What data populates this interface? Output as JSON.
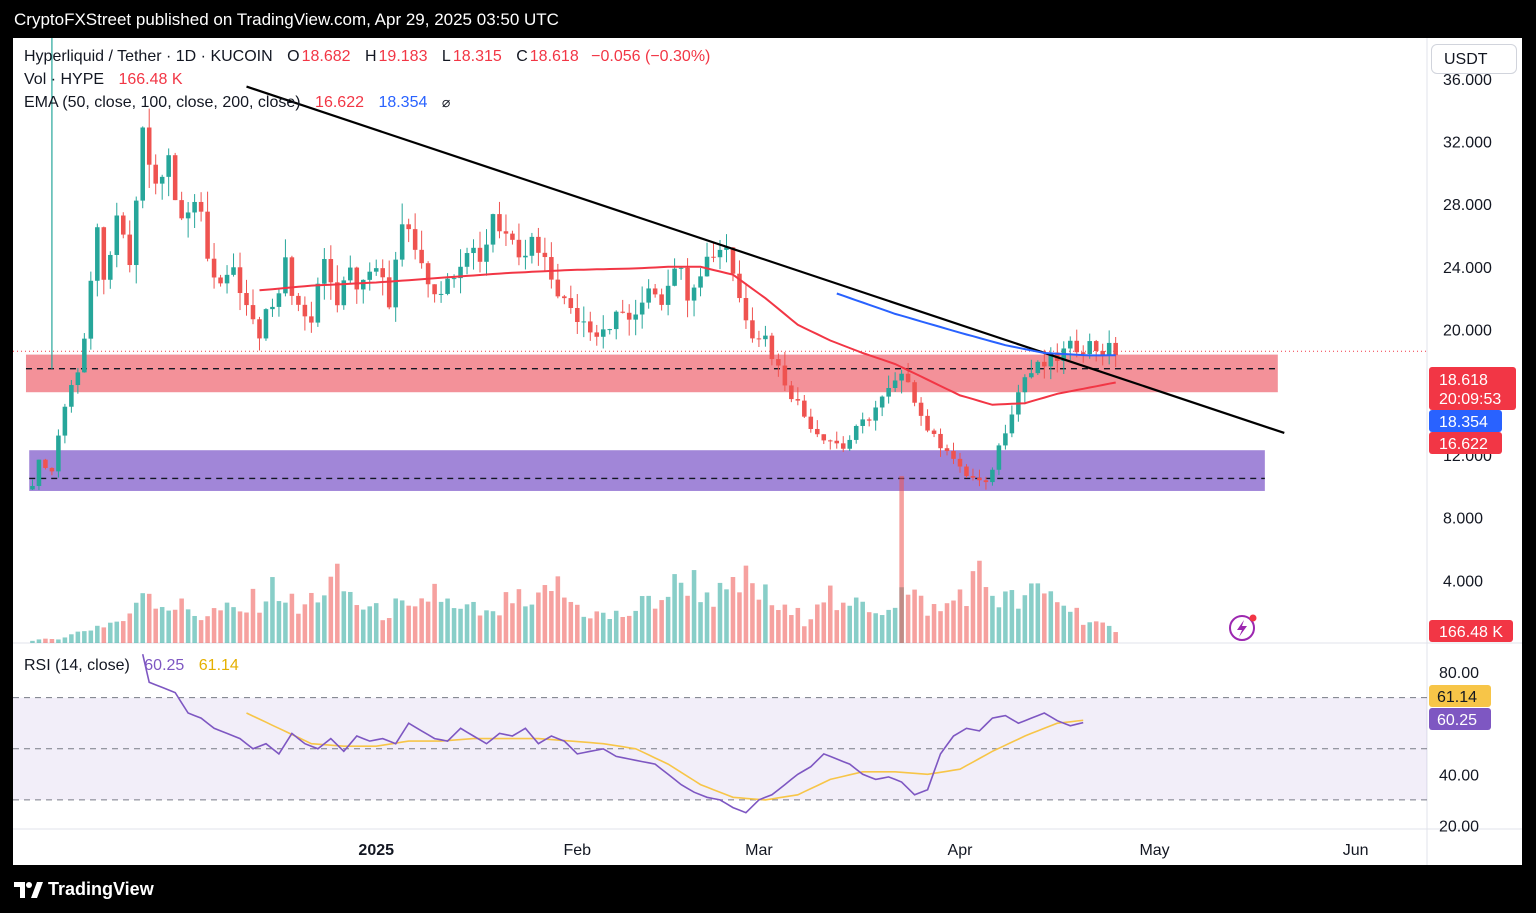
{
  "header": {
    "published": "CryptoFXStreet published on TradingView.com, Apr 29, 2025 03:50 UTC"
  },
  "legend": {
    "symbol": "Hyperliquid / Tether · 1D · KUCOIN",
    "o_label": "O",
    "o_value": "18.682",
    "h_label": "H",
    "h_value": "19.183",
    "l_label": "L",
    "l_value": "18.315",
    "c_label": "C",
    "c_value": "18.618",
    "change": "−0.056 (−0.30%)",
    "vol_label": "Vol · HYPE",
    "vol_value": "166.48 K",
    "ema_label": "EMA (50, close, 100, close, 200, close)",
    "ema50_value": "16.622",
    "ema100_value": "18.354",
    "rsi_label": "RSI (14, close)",
    "rsi_value": "60.25",
    "rsi_ma_value": "61.14"
  },
  "currency_button": "USDT",
  "price_tags": {
    "last": "18.618",
    "countdown": "20:09:53",
    "ema100": "18.354",
    "ema50": "16.622",
    "volume": "166.48 K",
    "rsi_ma": "61.14",
    "rsi": "60.25"
  },
  "footer": {
    "brand": "TradingView"
  },
  "colors": {
    "up": "#26a69a",
    "down": "#ef5350",
    "ema50": "#f23645",
    "ema100": "#2962ff",
    "rsi": "#7e57c2",
    "rsi_ma": "#f7c548",
    "resistance_zone": "#f28b93",
    "support_zone": "#9c7fd6"
  },
  "chart_data": {
    "type": "candlestick",
    "price_axis": {
      "ticks": [
        "36.000",
        "32.000",
        "28.000",
        "24.000",
        "20.000",
        "12.000",
        "8.000",
        "4.000"
      ],
      "range": [
        0,
        38.6
      ]
    },
    "rsi_axis": {
      "ticks": [
        "80.00",
        "40.00",
        "20.00"
      ],
      "range": [
        19,
        91
      ],
      "bands": [
        30,
        50,
        70
      ]
    },
    "time_axis": [
      "2025",
      "Feb",
      "Mar",
      "Apr",
      "May",
      "Jun"
    ],
    "time_ticks_day": [
      15,
      46,
      74,
      105,
      135,
      166
    ],
    "day_range": [
      -41,
      177
    ],
    "last_price": 18.618,
    "horizontal_levels": {
      "resistance_zone": [
        16.0,
        18.4
      ],
      "resistance_line": 17.5,
      "support_zone": [
        9.7,
        12.3
      ],
      "support_line": 10.5
    },
    "trendline": [
      {
        "day": -5,
        "price": 35.5
      },
      {
        "day": 155,
        "price": 13.4
      }
    ],
    "price_anchors": [
      [
        -38,
        10.0
      ],
      [
        -37,
        12.0
      ],
      [
        -35,
        11.0
      ],
      [
        -33,
        15.0
      ],
      [
        -31,
        17.5
      ],
      [
        -30,
        20.0
      ],
      [
        -28,
        26.0
      ],
      [
        -27,
        22.5
      ],
      [
        -25,
        27.0
      ],
      [
        -23,
        24.0
      ],
      [
        -21,
        33.0
      ],
      [
        -19,
        29.0
      ],
      [
        -17,
        31.0
      ],
      [
        -15,
        27.0
      ],
      [
        -13,
        29.0
      ],
      [
        -11,
        25.0
      ],
      [
        -9,
        23.0
      ],
      [
        -7,
        23.5
      ],
      [
        -5,
        21.5
      ],
      [
        -3,
        19.5
      ],
      [
        -1,
        22.0
      ],
      [
        1,
        24.0
      ],
      [
        3,
        21.5
      ],
      [
        5,
        20.5
      ],
      [
        7,
        25.0
      ],
      [
        9,
        21.5
      ],
      [
        11,
        23.5
      ],
      [
        13,
        22.5
      ],
      [
        15,
        24.0
      ],
      [
        17,
        21.5
      ],
      [
        19,
        27.0
      ],
      [
        21,
        25.0
      ],
      [
        23,
        23.0
      ],
      [
        25,
        22.5
      ],
      [
        27,
        24.0
      ],
      [
        29,
        25.0
      ],
      [
        31,
        24.0
      ],
      [
        33,
        27.5
      ],
      [
        35,
        26.0
      ],
      [
        37,
        24.0
      ],
      [
        39,
        25.5
      ],
      [
        41,
        24.0
      ],
      [
        43,
        22.5
      ],
      [
        45,
        21.0
      ],
      [
        47,
        20.5
      ],
      [
        49,
        20.0
      ],
      [
        51,
        20.5
      ],
      [
        53,
        21.0
      ],
      [
        55,
        20.5
      ],
      [
        57,
        23.0
      ],
      [
        59,
        22.0
      ],
      [
        61,
        24.5
      ],
      [
        63,
        22.5
      ],
      [
        65,
        24.0
      ],
      [
        67,
        25.0
      ],
      [
        69,
        25.5
      ],
      [
        71,
        22.0
      ],
      [
        73,
        20.0
      ],
      [
        75,
        19.5
      ],
      [
        77,
        17.5
      ],
      [
        79,
        16.0
      ],
      [
        81,
        14.5
      ],
      [
        83,
        13.5
      ],
      [
        85,
        13.0
      ],
      [
        87,
        12.5
      ],
      [
        89,
        13.5
      ],
      [
        91,
        14.5
      ],
      [
        93,
        15.5
      ],
      [
        95,
        16.5
      ],
      [
        97,
        17.0
      ],
      [
        99,
        14.5
      ],
      [
        101,
        13.0
      ],
      [
        103,
        12.5
      ],
      [
        105,
        11.0
      ],
      [
        107,
        10.5
      ],
      [
        109,
        10.0
      ],
      [
        111,
        12.5
      ],
      [
        113,
        15.0
      ],
      [
        115,
        17.0
      ],
      [
        117,
        17.5
      ],
      [
        119,
        18.0
      ],
      [
        121,
        18.5
      ],
      [
        123,
        19.0
      ],
      [
        125,
        19.0
      ],
      [
        127,
        18.7
      ],
      [
        129,
        18.618
      ]
    ],
    "ema50_anchors": [
      [
        -3,
        22.5
      ],
      [
        5,
        22.8
      ],
      [
        15,
        23.0
      ],
      [
        25,
        23.3
      ],
      [
        35,
        23.6
      ],
      [
        45,
        23.8
      ],
      [
        55,
        23.9
      ],
      [
        60,
        24.0
      ],
      [
        65,
        24.0
      ],
      [
        70,
        23.5
      ],
      [
        75,
        22.0
      ],
      [
        80,
        20.3
      ],
      [
        85,
        19.3
      ],
      [
        90,
        18.5
      ],
      [
        95,
        17.8
      ],
      [
        100,
        16.8
      ],
      [
        105,
        15.8
      ],
      [
        110,
        15.2
      ],
      [
        115,
        15.3
      ],
      [
        120,
        15.9
      ],
      [
        125,
        16.3
      ],
      [
        129,
        16.622
      ]
    ],
    "ema100_anchors": [
      [
        86,
        22.3
      ],
      [
        95,
        21.0
      ],
      [
        105,
        19.8
      ],
      [
        112,
        19.0
      ],
      [
        118,
        18.5
      ],
      [
        125,
        18.35
      ],
      [
        129,
        18.354
      ]
    ],
    "rsi_anchors": [
      [
        -21,
        87
      ],
      [
        -20,
        76
      ],
      [
        -18,
        74
      ],
      [
        -16,
        72
      ],
      [
        -14,
        64
      ],
      [
        -12,
        62
      ],
      [
        -10,
        58
      ],
      [
        -8,
        56
      ],
      [
        -6,
        54
      ],
      [
        -4,
        50
      ],
      [
        -2,
        52
      ],
      [
        0,
        48
      ],
      [
        2,
        56
      ],
      [
        4,
        52
      ],
      [
        6,
        50
      ],
      [
        8,
        54
      ],
      [
        10,
        49
      ],
      [
        12,
        55
      ],
      [
        14,
        53
      ],
      [
        16,
        54
      ],
      [
        18,
        52
      ],
      [
        20,
        60
      ],
      [
        22,
        57
      ],
      [
        24,
        54
      ],
      [
        26,
        53
      ],
      [
        28,
        58
      ],
      [
        30,
        55
      ],
      [
        32,
        52
      ],
      [
        34,
        56
      ],
      [
        36,
        55
      ],
      [
        38,
        58
      ],
      [
        40,
        52
      ],
      [
        42,
        55
      ],
      [
        44,
        53
      ],
      [
        46,
        48
      ],
      [
        48,
        49
      ],
      [
        50,
        50
      ],
      [
        52,
        47
      ],
      [
        54,
        46
      ],
      [
        56,
        45
      ],
      [
        58,
        44
      ],
      [
        60,
        40
      ],
      [
        62,
        36
      ],
      [
        64,
        33
      ],
      [
        66,
        31
      ],
      [
        68,
        30
      ],
      [
        70,
        27
      ],
      [
        72,
        25
      ],
      [
        74,
        30
      ],
      [
        76,
        32
      ],
      [
        78,
        36
      ],
      [
        80,
        40
      ],
      [
        82,
        43
      ],
      [
        84,
        48
      ],
      [
        86,
        46
      ],
      [
        88,
        44
      ],
      [
        90,
        40
      ],
      [
        92,
        38
      ],
      [
        94,
        39
      ],
      [
        96,
        37
      ],
      [
        98,
        32
      ],
      [
        100,
        34
      ],
      [
        102,
        48
      ],
      [
        104,
        55
      ],
      [
        106,
        58
      ],
      [
        108,
        57
      ],
      [
        110,
        62
      ],
      [
        112,
        63
      ],
      [
        114,
        60
      ],
      [
        116,
        62
      ],
      [
        118,
        64
      ],
      [
        120,
        61
      ],
      [
        122,
        59
      ],
      [
        124,
        60.25
      ]
    ],
    "rsi_ma_anchors": [
      [
        -5,
        64
      ],
      [
        0,
        58
      ],
      [
        5,
        52
      ],
      [
        10,
        51
      ],
      [
        15,
        51
      ],
      [
        20,
        53
      ],
      [
        25,
        53
      ],
      [
        30,
        54
      ],
      [
        35,
        54
      ],
      [
        40,
        54
      ],
      [
        45,
        53
      ],
      [
        50,
        52
      ],
      [
        55,
        50
      ],
      [
        60,
        44
      ],
      [
        65,
        36
      ],
      [
        70,
        31
      ],
      [
        75,
        30
      ],
      [
        80,
        32
      ],
      [
        85,
        38
      ],
      [
        90,
        41
      ],
      [
        95,
        41
      ],
      [
        100,
        40
      ],
      [
        105,
        42
      ],
      [
        110,
        49
      ],
      [
        115,
        55
      ],
      [
        120,
        60
      ],
      [
        124,
        61.14
      ]
    ],
    "volume_anchors": [
      [
        -38,
        0.2
      ],
      [
        -35,
        0.4
      ],
      [
        -32,
        0.8
      ],
      [
        -29,
        1.5
      ],
      [
        -26,
        2.0
      ],
      [
        -23,
        2.4
      ],
      [
        -21,
        6.0
      ],
      [
        -18,
        4.0
      ],
      [
        -15,
        3.5
      ],
      [
        -12,
        2.8
      ],
      [
        -9,
        3.2
      ],
      [
        -6,
        3.0
      ],
      [
        -3,
        4.5
      ],
      [
        0,
        5.5
      ],
      [
        3,
        3.0
      ],
      [
        6,
        5.0
      ],
      [
        9,
        6.0
      ],
      [
        12,
        4.0
      ],
      [
        15,
        3.0
      ],
      [
        18,
        3.5
      ],
      [
        21,
        2.8
      ],
      [
        24,
        5.5
      ],
      [
        27,
        3.0
      ],
      [
        30,
        3.2
      ],
      [
        33,
        2.5
      ],
      [
        36,
        4.5
      ],
      [
        39,
        3.0
      ],
      [
        42,
        6.0
      ],
      [
        45,
        4.0
      ],
      [
        48,
        3.0
      ],
      [
        51,
        2.5
      ],
      [
        54,
        3.0
      ],
      [
        57,
        4.0
      ],
      [
        60,
        5.0
      ],
      [
        63,
        6.5
      ],
      [
        66,
        5.0
      ],
      [
        69,
        4.5
      ],
      [
        72,
        6.0
      ],
      [
        75,
        4.5
      ],
      [
        78,
        3.0
      ],
      [
        81,
        2.5
      ],
      [
        84,
        5.5
      ],
      [
        87,
        3.0
      ],
      [
        90,
        4.0
      ],
      [
        93,
        3.5
      ],
      [
        96,
        5.0
      ],
      [
        99,
        4.0
      ],
      [
        102,
        3.0
      ],
      [
        105,
        5.0
      ],
      [
        108,
        6.5
      ],
      [
        111,
        4.5
      ],
      [
        114,
        4.0
      ],
      [
        117,
        5.0
      ],
      [
        120,
        4.5
      ],
      [
        123,
        3.0
      ],
      [
        126,
        2.0
      ],
      [
        129,
        0.9
      ]
    ],
    "volume_range": [
      0,
      7.6
    ],
    "volume_spikes": [
      {
        "day": 96,
        "value": 8.9
      }
    ]
  }
}
